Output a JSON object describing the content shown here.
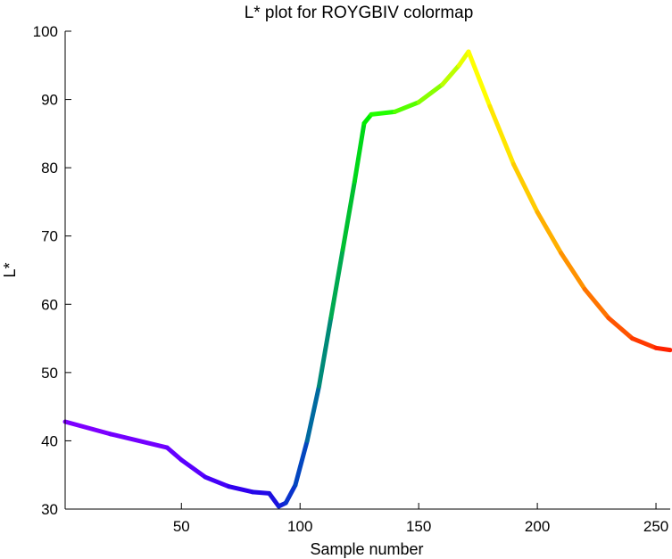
{
  "chart_data": {
    "type": "line",
    "title": "L* plot for ROYGBIV colormap",
    "xlabel": "Sample number",
    "ylabel": "L*",
    "xlim": [
      1,
      256
    ],
    "ylim": [
      30,
      100
    ],
    "xticks": [
      50,
      100,
      150,
      200,
      250
    ],
    "yticks": [
      30,
      40,
      50,
      60,
      70,
      80,
      90,
      100
    ],
    "grid": false,
    "legend": "none",
    "series": [
      {
        "points": [
          {
            "x": 1,
            "y": 42.8,
            "color": "#7d00ff"
          },
          {
            "x": 20,
            "y": 41.0,
            "color": "#7300ff"
          },
          {
            "x": 44,
            "y": 39.0,
            "color": "#6600ff"
          },
          {
            "x": 50,
            "y": 37.2,
            "color": "#5a00fe"
          },
          {
            "x": 60,
            "y": 34.7,
            "color": "#4500f8"
          },
          {
            "x": 70,
            "y": 33.3,
            "color": "#3000ef"
          },
          {
            "x": 80,
            "y": 32.5,
            "color": "#2408e8"
          },
          {
            "x": 87,
            "y": 32.3,
            "color": "#1c10e0"
          },
          {
            "x": 91,
            "y": 30.4,
            "color": "#1222d8"
          },
          {
            "x": 94,
            "y": 30.9,
            "color": "#0a34cc"
          },
          {
            "x": 98,
            "y": 33.5,
            "color": "#0346c0"
          },
          {
            "x": 103,
            "y": 40.0,
            "color": "#006aa0"
          },
          {
            "x": 108,
            "y": 48.0,
            "color": "#008a78"
          },
          {
            "x": 113,
            "y": 58.0,
            "color": "#00aa50"
          },
          {
            "x": 118,
            "y": 68.0,
            "color": "#00c030"
          },
          {
            "x": 123,
            "y": 78.0,
            "color": "#00d818"
          },
          {
            "x": 127,
            "y": 86.5,
            "color": "#00ee00"
          },
          {
            "x": 130,
            "y": 87.8,
            "color": "#22ff00"
          },
          {
            "x": 140,
            "y": 88.2,
            "color": "#55ff00"
          },
          {
            "x": 150,
            "y": 89.6,
            "color": "#88ff00"
          },
          {
            "x": 160,
            "y": 92.2,
            "color": "#bbff00"
          },
          {
            "x": 167,
            "y": 95.0,
            "color": "#e8ff00"
          },
          {
            "x": 171,
            "y": 97.0,
            "color": "#ffff00"
          },
          {
            "x": 180,
            "y": 89.0,
            "color": "#ffe600"
          },
          {
            "x": 190,
            "y": 80.5,
            "color": "#ffcc00"
          },
          {
            "x": 200,
            "y": 73.5,
            "color": "#ffb000"
          },
          {
            "x": 210,
            "y": 67.5,
            "color": "#ff9200"
          },
          {
            "x": 220,
            "y": 62.2,
            "color": "#ff7400"
          },
          {
            "x": 230,
            "y": 58.0,
            "color": "#ff5400"
          },
          {
            "x": 240,
            "y": 55.0,
            "color": "#ff3a00"
          },
          {
            "x": 250,
            "y": 53.6,
            "color": "#ff2200"
          },
          {
            "x": 256,
            "y": 53.3,
            "color": "#ff1a00"
          }
        ]
      }
    ]
  }
}
